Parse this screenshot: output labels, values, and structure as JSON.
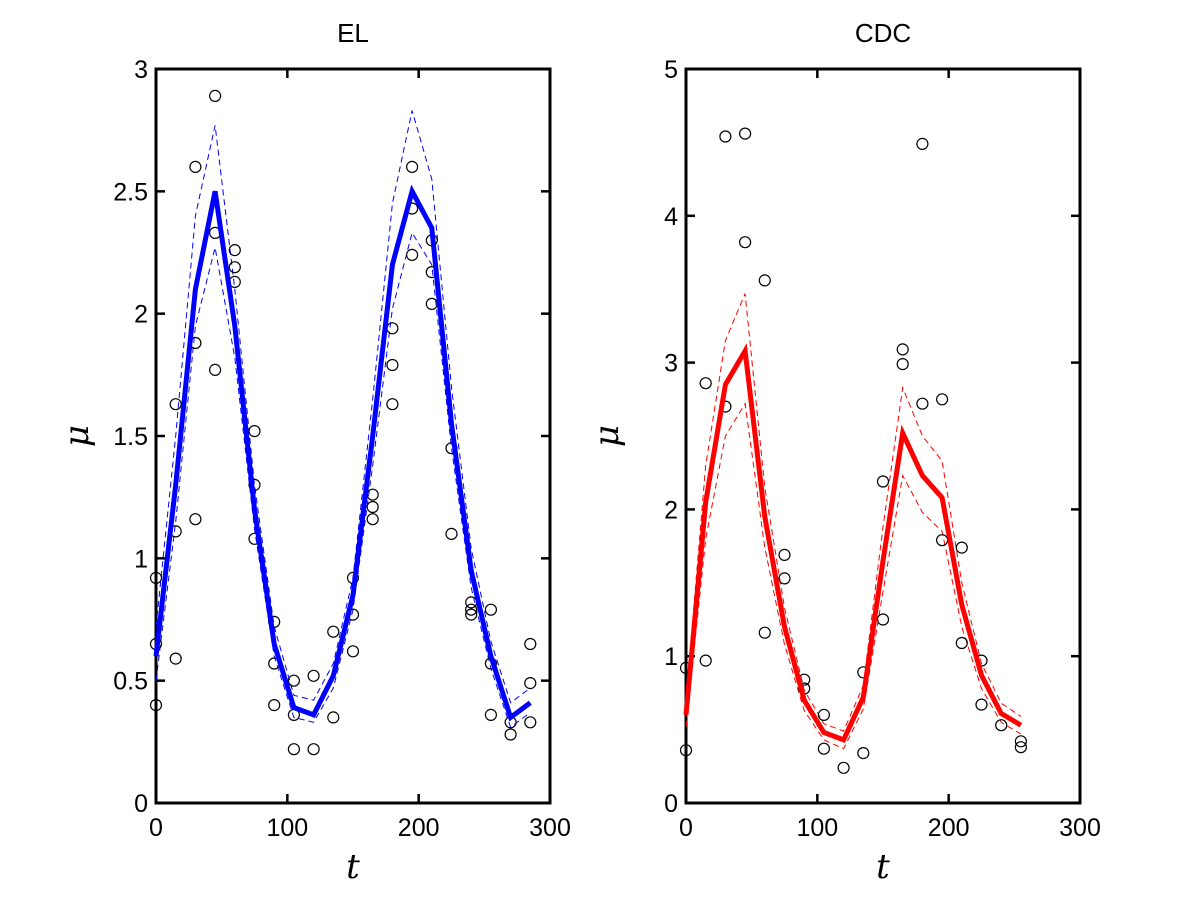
{
  "chart_data": [
    {
      "type": "scatter",
      "title": "EL",
      "xlabel": "t",
      "ylabel": "μ",
      "xlim": [
        0,
        300
      ],
      "ylim": [
        0,
        3
      ],
      "xticks": [
        "0",
        "100",
        "200",
        "300"
      ],
      "yticks": [
        "0",
        "0.5",
        "1",
        "1.5",
        "2",
        "2.5",
        "3"
      ],
      "grid": false,
      "color": "#0000ff",
      "fit": {
        "x": [
          0,
          15,
          30,
          45,
          60,
          75,
          90,
          105,
          120,
          135,
          150,
          165,
          180,
          195,
          210,
          225,
          240,
          255,
          270,
          285
        ],
        "y": [
          0.6,
          1.3,
          2.1,
          2.5,
          1.95,
          1.2,
          0.65,
          0.39,
          0.36,
          0.52,
          0.85,
          1.5,
          2.2,
          2.5,
          2.35,
          1.55,
          0.95,
          0.6,
          0.35,
          0.41
        ]
      },
      "upper": {
        "x": [
          0,
          15,
          30,
          45,
          60,
          75,
          90,
          105,
          120,
          135,
          150,
          165,
          180,
          195,
          210,
          225,
          240,
          255,
          270,
          285
        ],
        "y": [
          0.72,
          1.5,
          2.4,
          2.77,
          2.1,
          1.3,
          0.72,
          0.44,
          0.42,
          0.57,
          0.92,
          1.65,
          2.45,
          2.83,
          2.55,
          1.7,
          1.04,
          0.66,
          0.41,
          0.47
        ]
      },
      "lower": {
        "x": [
          0,
          15,
          30,
          45,
          60,
          75,
          90,
          105,
          120,
          135,
          150,
          165,
          180,
          195,
          210,
          225,
          240,
          255,
          270,
          285
        ],
        "y": [
          0.5,
          1.15,
          1.95,
          2.27,
          1.82,
          1.12,
          0.6,
          0.35,
          0.33,
          0.47,
          0.79,
          1.38,
          2.02,
          2.33,
          2.2,
          1.45,
          0.88,
          0.55,
          0.31,
          0.37
        ]
      },
      "points": {
        "x": [
          0,
          0,
          0,
          15,
          15,
          15,
          30,
          30,
          30,
          45,
          45,
          45,
          60,
          60,
          60,
          75,
          75,
          75,
          90,
          90,
          90,
          105,
          105,
          105,
          120,
          120,
          135,
          135,
          150,
          150,
          150,
          165,
          165,
          165,
          180,
          180,
          180,
          195,
          195,
          195,
          210,
          210,
          210,
          225,
          225,
          240,
          240,
          240,
          255,
          255,
          255,
          270,
          270,
          285,
          285,
          285
        ],
        "y": [
          0.92,
          0.65,
          0.4,
          1.63,
          1.11,
          0.59,
          2.6,
          1.88,
          1.16,
          2.89,
          2.33,
          1.77,
          2.26,
          2.19,
          2.13,
          1.52,
          1.3,
          1.08,
          0.74,
          0.57,
          0.4,
          0.5,
          0.36,
          0.22,
          0.52,
          0.22,
          0.7,
          0.35,
          0.92,
          0.77,
          0.62,
          1.26,
          1.21,
          1.16,
          1.94,
          1.79,
          1.63,
          2.6,
          2.43,
          2.24,
          2.3,
          2.17,
          2.04,
          1.45,
          1.1,
          0.82,
          0.79,
          0.77,
          0.79,
          0.57,
          0.36,
          0.33,
          0.28,
          0.65,
          0.49,
          0.33
        ]
      }
    },
    {
      "type": "scatter",
      "title": "CDC",
      "xlabel": "t",
      "ylabel": "μ",
      "xlim": [
        0,
        300
      ],
      "ylim": [
        0,
        5
      ],
      "xticks": [
        "0",
        "100",
        "200",
        "300"
      ],
      "yticks": [
        "0",
        "1",
        "2",
        "3",
        "4",
        "5"
      ],
      "grid": false,
      "color": "#ff0000",
      "fit": {
        "x": [
          0,
          15,
          30,
          45,
          60,
          75,
          90,
          105,
          120,
          135,
          150,
          165,
          180,
          195,
          210,
          225,
          240,
          255
        ],
        "y": [
          0.6,
          2.05,
          2.85,
          3.08,
          1.95,
          1.2,
          0.7,
          0.48,
          0.43,
          0.72,
          1.65,
          2.52,
          2.23,
          2.08,
          1.35,
          0.87,
          0.61,
          0.53
        ]
      },
      "upper": {
        "x": [
          0,
          15,
          30,
          45,
          60,
          75,
          90,
          105,
          120,
          135,
          150,
          165,
          180,
          195,
          210,
          225,
          240,
          255
        ],
        "y": [
          0.7,
          2.3,
          3.15,
          3.47,
          2.15,
          1.33,
          0.77,
          0.54,
          0.49,
          0.8,
          1.88,
          2.83,
          2.5,
          2.33,
          1.5,
          0.95,
          0.68,
          0.59
        ]
      },
      "lower": {
        "x": [
          0,
          15,
          30,
          45,
          60,
          75,
          90,
          105,
          120,
          135,
          150,
          165,
          180,
          195,
          210,
          225,
          240,
          255
        ],
        "y": [
          0.52,
          1.8,
          2.5,
          2.72,
          1.74,
          1.08,
          0.63,
          0.43,
          0.37,
          0.64,
          1.44,
          2.23,
          1.98,
          1.85,
          1.2,
          0.78,
          0.55,
          0.47
        ]
      },
      "points": {
        "x": [
          0,
          0,
          15,
          15,
          30,
          30,
          45,
          45,
          60,
          60,
          75,
          75,
          90,
          90,
          105,
          105,
          120,
          135,
          135,
          150,
          150,
          165,
          165,
          180,
          180,
          195,
          195,
          210,
          210,
          225,
          225,
          240,
          255,
          255
        ],
        "y": [
          0.92,
          0.36,
          2.86,
          0.97,
          4.54,
          2.7,
          4.56,
          3.82,
          3.56,
          1.16,
          1.69,
          1.53,
          0.84,
          0.78,
          0.6,
          0.37,
          0.24,
          0.89,
          0.34,
          2.19,
          1.25,
          3.09,
          2.99,
          4.49,
          2.72,
          2.75,
          1.79,
          1.74,
          1.09,
          0.97,
          0.67,
          0.53,
          0.42,
          0.38
        ]
      }
    }
  ]
}
